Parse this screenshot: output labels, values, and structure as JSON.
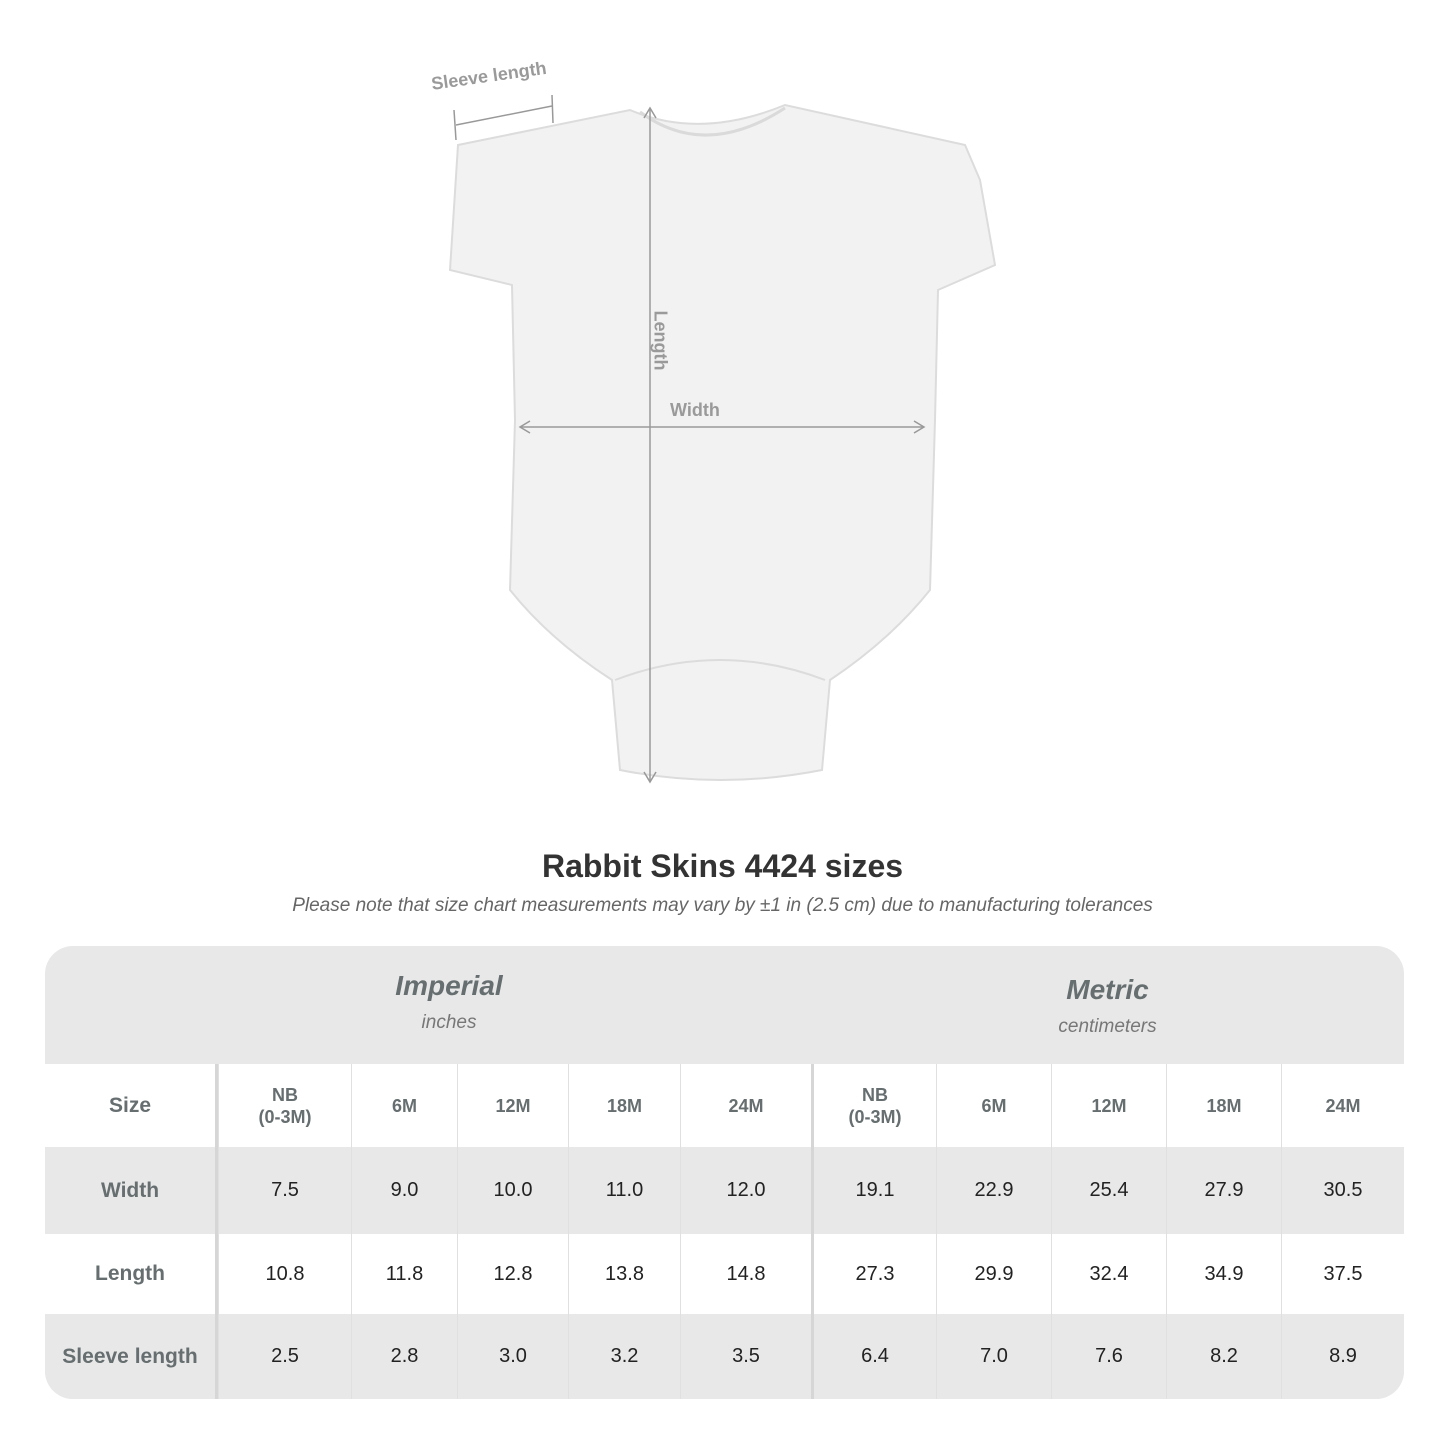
{
  "diagram": {
    "sleeve_label": "Sleeve length",
    "length_label": "Length",
    "width_label": "Width"
  },
  "title": "Rabbit Skins 4424 sizes",
  "note": "Please note that size chart measurements may vary by ±1 in (2.5 cm) due to manufacturing tolerances",
  "table": {
    "imperial": {
      "name": "Imperial",
      "unit": "inches"
    },
    "metric": {
      "name": "Metric",
      "unit": "centimeters"
    },
    "size_label": "Size",
    "sizes": [
      "NB\n(0-3M)",
      "6M",
      "12M",
      "18M",
      "24M",
      "NB\n(0-3M)",
      "6M",
      "12M",
      "18M",
      "24M"
    ],
    "rows": [
      {
        "label": "Width",
        "values": [
          "7.5",
          "9.0",
          "10.0",
          "11.0",
          "12.0",
          "19.1",
          "22.9",
          "25.4",
          "27.9",
          "30.5"
        ]
      },
      {
        "label": "Length",
        "values": [
          "10.8",
          "11.8",
          "12.8",
          "13.8",
          "14.8",
          "27.3",
          "29.9",
          "32.4",
          "34.9",
          "37.5"
        ]
      },
      {
        "label": "Sleeve length",
        "values": [
          "2.5",
          "2.8",
          "3.0",
          "3.2",
          "3.5",
          "6.4",
          "7.0",
          "7.6",
          "8.2",
          "8.9"
        ]
      }
    ]
  }
}
